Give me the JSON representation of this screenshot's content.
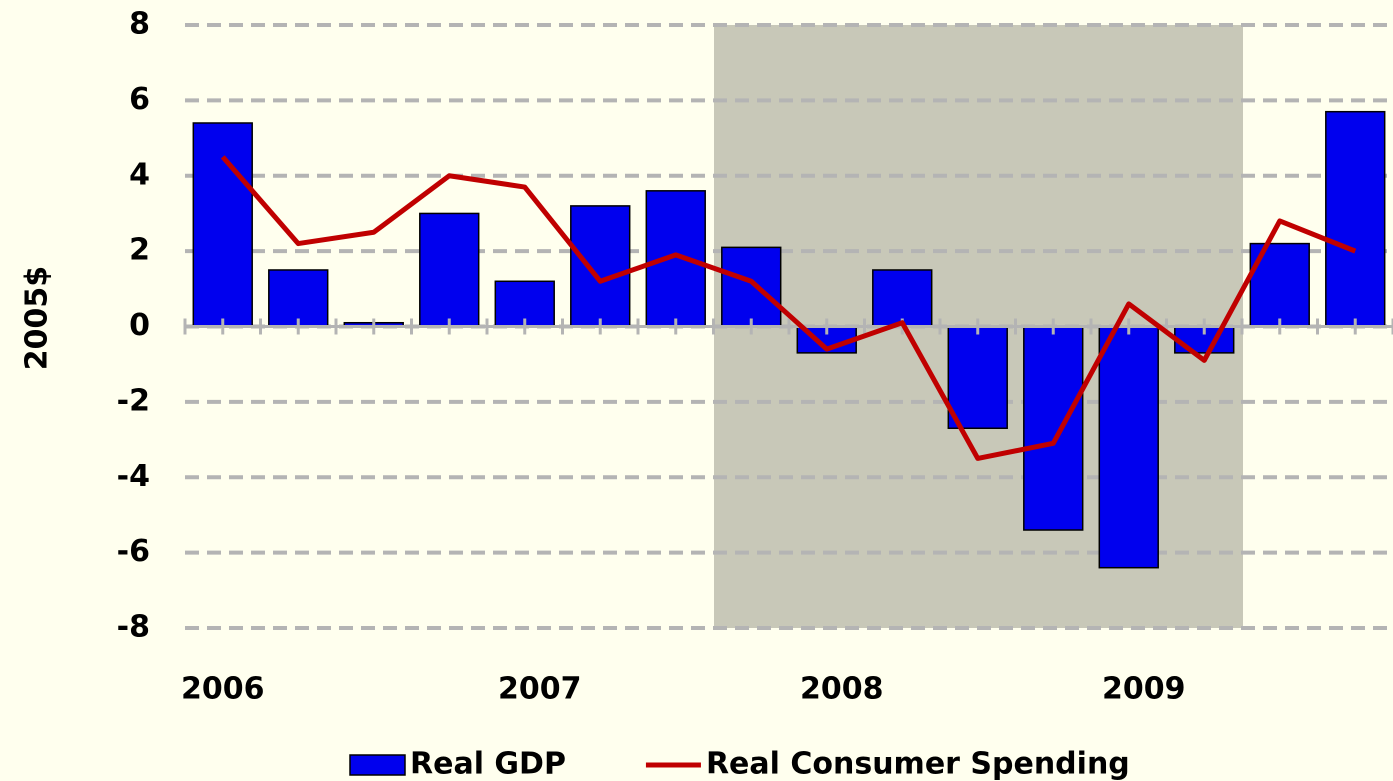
{
  "chart_data": {
    "type": "bar",
    "y_label": "2005$",
    "categories": [
      "2006",
      null,
      null,
      null,
      "2007",
      null,
      null,
      null,
      "2008",
      null,
      null,
      null,
      "2009",
      null,
      null,
      null
    ],
    "series": [
      {
        "name": "Real GDP",
        "type": "bar",
        "color": "#0000ee",
        "values": [
          5.4,
          1.5,
          0.1,
          3.0,
          1.2,
          3.2,
          3.6,
          2.1,
          -0.7,
          1.5,
          -2.7,
          -5.4,
          -6.4,
          -0.7,
          2.2,
          5.7
        ]
      },
      {
        "name": "Real Consumer Spending",
        "type": "line",
        "color": "#c00000",
        "values": [
          4.5,
          2.2,
          2.5,
          4.0,
          3.7,
          1.2,
          1.9,
          1.2,
          -0.6,
          0.1,
          -3.5,
          -3.1,
          0.6,
          -0.9,
          2.8,
          2.0
        ]
      }
    ],
    "ylim": [
      -8,
      8
    ],
    "yticks": [
      8,
      6,
      4,
      2,
      0,
      -2,
      -4,
      -6,
      -8
    ],
    "grid": true,
    "legend": "bottom"
  }
}
